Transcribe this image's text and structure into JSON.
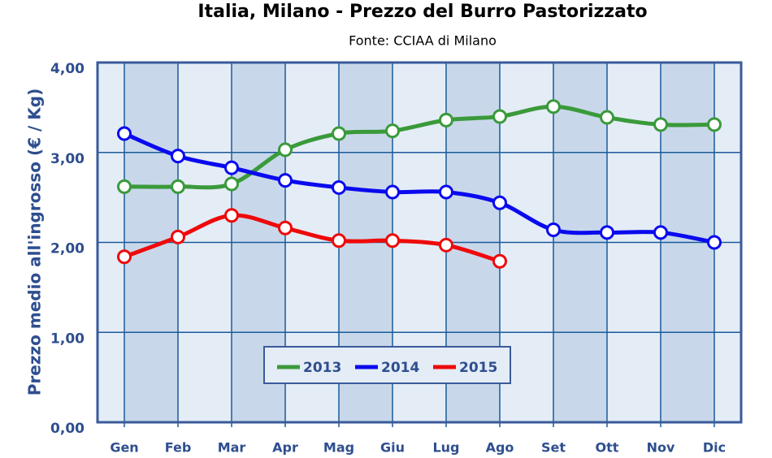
{
  "chart_data": {
    "type": "line",
    "title": "Italia, Milano - Prezzo del Burro Pastorizzato",
    "subtitle": "Fonte: CCIAA di Milano",
    "y_label": "Prezzo medio all'ingrosso (€ / Kg)",
    "categories": [
      "Gen",
      "Feb",
      "Mar",
      "Apr",
      "Mag",
      "Giu",
      "Lug",
      "Ago",
      "Set",
      "Ott",
      "Nov",
      "Dic"
    ],
    "series": [
      {
        "name": "2013",
        "color": "#3a9a3a",
        "values": [
          2.62,
          2.62,
          2.65,
          3.03,
          3.21,
          3.24,
          3.36,
          3.4,
          3.51,
          3.39,
          3.31,
          3.31
        ]
      },
      {
        "name": "2014",
        "color": "#0a0aee",
        "values": [
          3.21,
          2.96,
          2.83,
          2.69,
          2.61,
          2.56,
          2.56,
          2.44,
          2.14,
          2.11,
          2.11,
          2.0
        ]
      },
      {
        "name": "2015",
        "color": "#ee0a0a",
        "values": [
          1.84,
          2.06,
          2.3,
          2.16,
          2.02,
          2.02,
          1.97,
          1.79,
          null,
          null,
          null,
          null
        ]
      }
    ],
    "ylim": [
      0,
      4
    ],
    "yticks": [
      {
        "value": 0,
        "label": "0,00"
      },
      {
        "value": 1,
        "label": "1,00"
      },
      {
        "value": 2,
        "label": "2,00"
      },
      {
        "value": 3,
        "label": "3,00"
      },
      {
        "value": 4,
        "label": "4,00"
      }
    ],
    "grid": true,
    "legend": "bottom"
  }
}
